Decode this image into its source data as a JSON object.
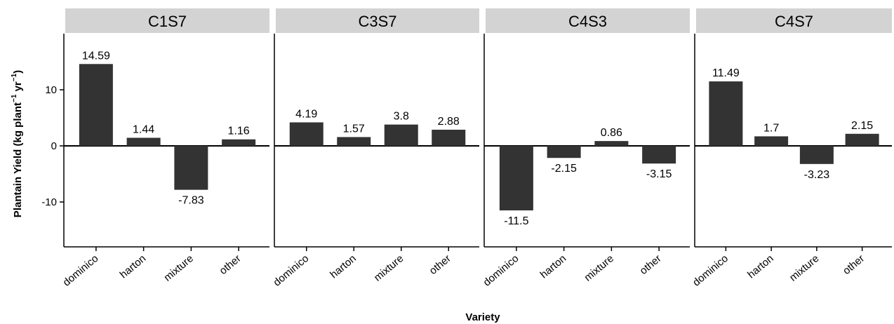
{
  "chart_data": {
    "type": "bar",
    "xlabel": "Variety",
    "ylabel": "Plantain Yield (kg plant",
    "ylabel_sup1": "−1",
    "ylabel_mid": " yr",
    "ylabel_sup2": "−1",
    "ylabel_end": ")",
    "ylim": [
      -18,
      20
    ],
    "yticks": [
      -10,
      0,
      10
    ],
    "categories": [
      "dominico",
      "harton",
      "mixture",
      "other"
    ],
    "panels": [
      {
        "name": "C1S7",
        "values": [
          14.59,
          1.44,
          -7.83,
          1.16
        ],
        "labels": [
          "14.59",
          "1.44",
          "-7.83",
          "1.16"
        ]
      },
      {
        "name": "C3S7",
        "values": [
          4.19,
          1.57,
          3.8,
          2.88
        ],
        "labels": [
          "4.19",
          "1.57",
          "3.8",
          "2.88"
        ]
      },
      {
        "name": "C4S3",
        "values": [
          -11.5,
          -2.15,
          0.86,
          -3.15
        ],
        "labels": [
          "-11.5",
          "-2.15",
          "0.86",
          "-3.15"
        ]
      },
      {
        "name": "C4S7",
        "values": [
          11.49,
          1.7,
          -3.23,
          2.15
        ],
        "labels": [
          "11.49",
          "1.7",
          "-3.23",
          "2.15"
        ]
      }
    ],
    "bar_color": "#333333",
    "strip_color": "#d3d3d3",
    "grid": false,
    "legend": "none"
  }
}
